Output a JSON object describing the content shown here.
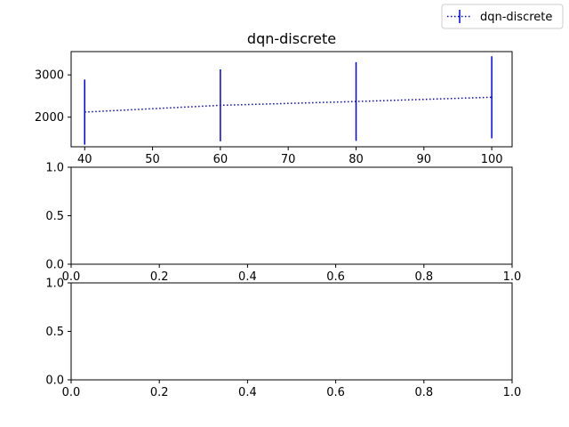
{
  "legend": {
    "label": "dqn-discrete"
  },
  "chart_data": [
    {
      "type": "line",
      "title": "dqn-discrete",
      "xlabel": "",
      "ylabel": "",
      "xlim": [
        38,
        103
      ],
      "ylim": [
        1300,
        3550
      ],
      "xticks": [
        40,
        50,
        60,
        70,
        80,
        90,
        100
      ],
      "xtick_labels": [
        "40",
        "50",
        "60",
        "70",
        "80",
        "90",
        "100"
      ],
      "yticks": [
        2000,
        3000
      ],
      "ytick_labels": [
        "2000",
        "3000"
      ],
      "grid": false,
      "legend_position": "upper right of figure",
      "color": "#0000ff",
      "line_style": "dotted",
      "series": [
        {
          "name": "dqn-discrete",
          "x": [
            40,
            60,
            80,
            100
          ],
          "y": [
            2120,
            2280,
            2370,
            2470
          ],
          "yerr": [
            770,
            850,
            930,
            970
          ]
        }
      ]
    },
    {
      "type": "line",
      "title": "",
      "xlim": [
        0,
        1
      ],
      "ylim": [
        0,
        1
      ],
      "xticks": [
        0,
        0.2,
        0.4,
        0.6,
        0.8,
        1.0
      ],
      "xtick_labels": [
        "0.0",
        "0.2",
        "0.4",
        "0.6",
        "0.8",
        "1.0"
      ],
      "yticks": [
        0,
        0.5,
        1.0
      ],
      "ytick_labels": [
        "0.0",
        "0.5",
        "1.0"
      ],
      "grid": false,
      "series": []
    },
    {
      "type": "line",
      "title": "",
      "xlim": [
        0,
        1
      ],
      "ylim": [
        0,
        1
      ],
      "xticks": [
        0,
        0.2,
        0.4,
        0.6,
        0.8,
        1.0
      ],
      "xtick_labels": [
        "0.0",
        "0.2",
        "0.4",
        "0.6",
        "0.8",
        "1.0"
      ],
      "yticks": [
        0,
        0.5,
        1.0
      ],
      "ytick_labels": [
        "0.0",
        "0.5",
        "1.0"
      ],
      "grid": false,
      "series": []
    }
  ]
}
